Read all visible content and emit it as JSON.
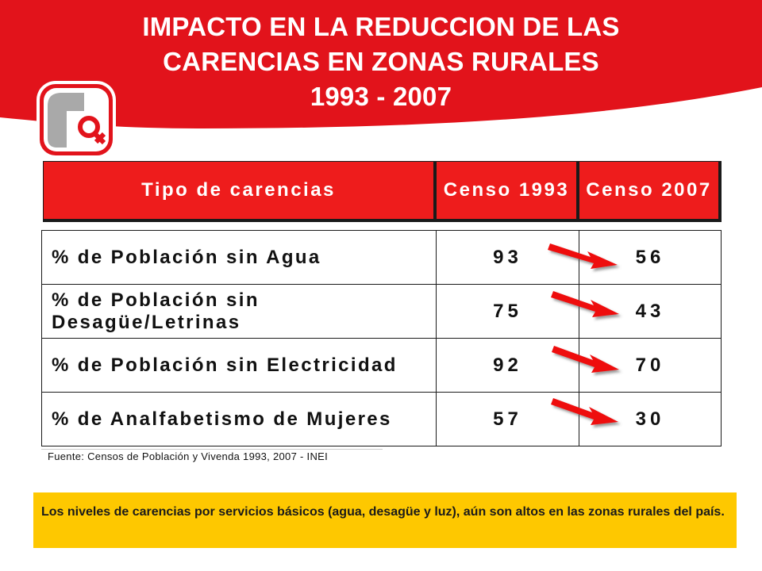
{
  "header": {
    "title_line1": "IMPACTO EN LA REDUCCION DE LAS",
    "title_line2": "CARENCIAS EN ZONAS RURALES",
    "title_line3": "1993 - 2007",
    "banner_color": "#e2131b",
    "logo_icon": "gender-symbol-logo-icon"
  },
  "table": {
    "columns": [
      "Tipo de carencias",
      "Censo 1993",
      "Censo 2007"
    ],
    "rows": [
      {
        "label": "% de Población sin Agua",
        "censo_1993": "93",
        "censo_2007": "56"
      },
      {
        "label": "% de Población sin Desagüe/Letrinas",
        "censo_1993": "75",
        "censo_2007": "43"
      },
      {
        "label": "% de Población sin Electricidad",
        "censo_1993": "92",
        "censo_2007": "70"
      },
      {
        "label": "% de Analfabetismo de Mujeres",
        "censo_1993": "57",
        "censo_2007": "30"
      }
    ],
    "header_color": "#ee1c1c",
    "arrow_icon": "red-arrow-icon",
    "arrow_color": "#ee1111"
  },
  "source": "Fuente: Censos de Población y Vivenda 1993, 2007 - INEI",
  "note": {
    "text": "Los niveles de carencias por servicios básicos (agua, desagüe y luz), aún son altos en las zonas rurales del país.",
    "background": "#fec800"
  }
}
